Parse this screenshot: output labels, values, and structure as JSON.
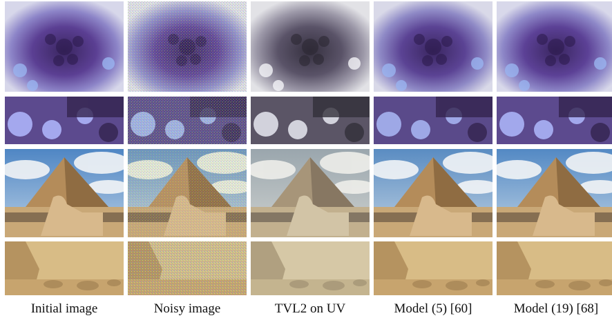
{
  "figure": {
    "columns": [
      {
        "key": "initial",
        "caption": "Initial image"
      },
      {
        "key": "noisy",
        "caption": "Noisy image"
      },
      {
        "key": "tvl2",
        "caption": "TVL2 on UV"
      },
      {
        "key": "model5",
        "caption": "Model (5) [60]"
      },
      {
        "key": "model19",
        "caption": "Model (19) [68]"
      }
    ],
    "rows": [
      {
        "key": "flower",
        "content": "flower"
      },
      {
        "key": "flower-zoom",
        "content": "flower zoom"
      },
      {
        "key": "pyramid",
        "content": "pyramid and sphinx"
      },
      {
        "key": "sphinx-zoom",
        "content": "sphinx zoom"
      }
    ]
  }
}
